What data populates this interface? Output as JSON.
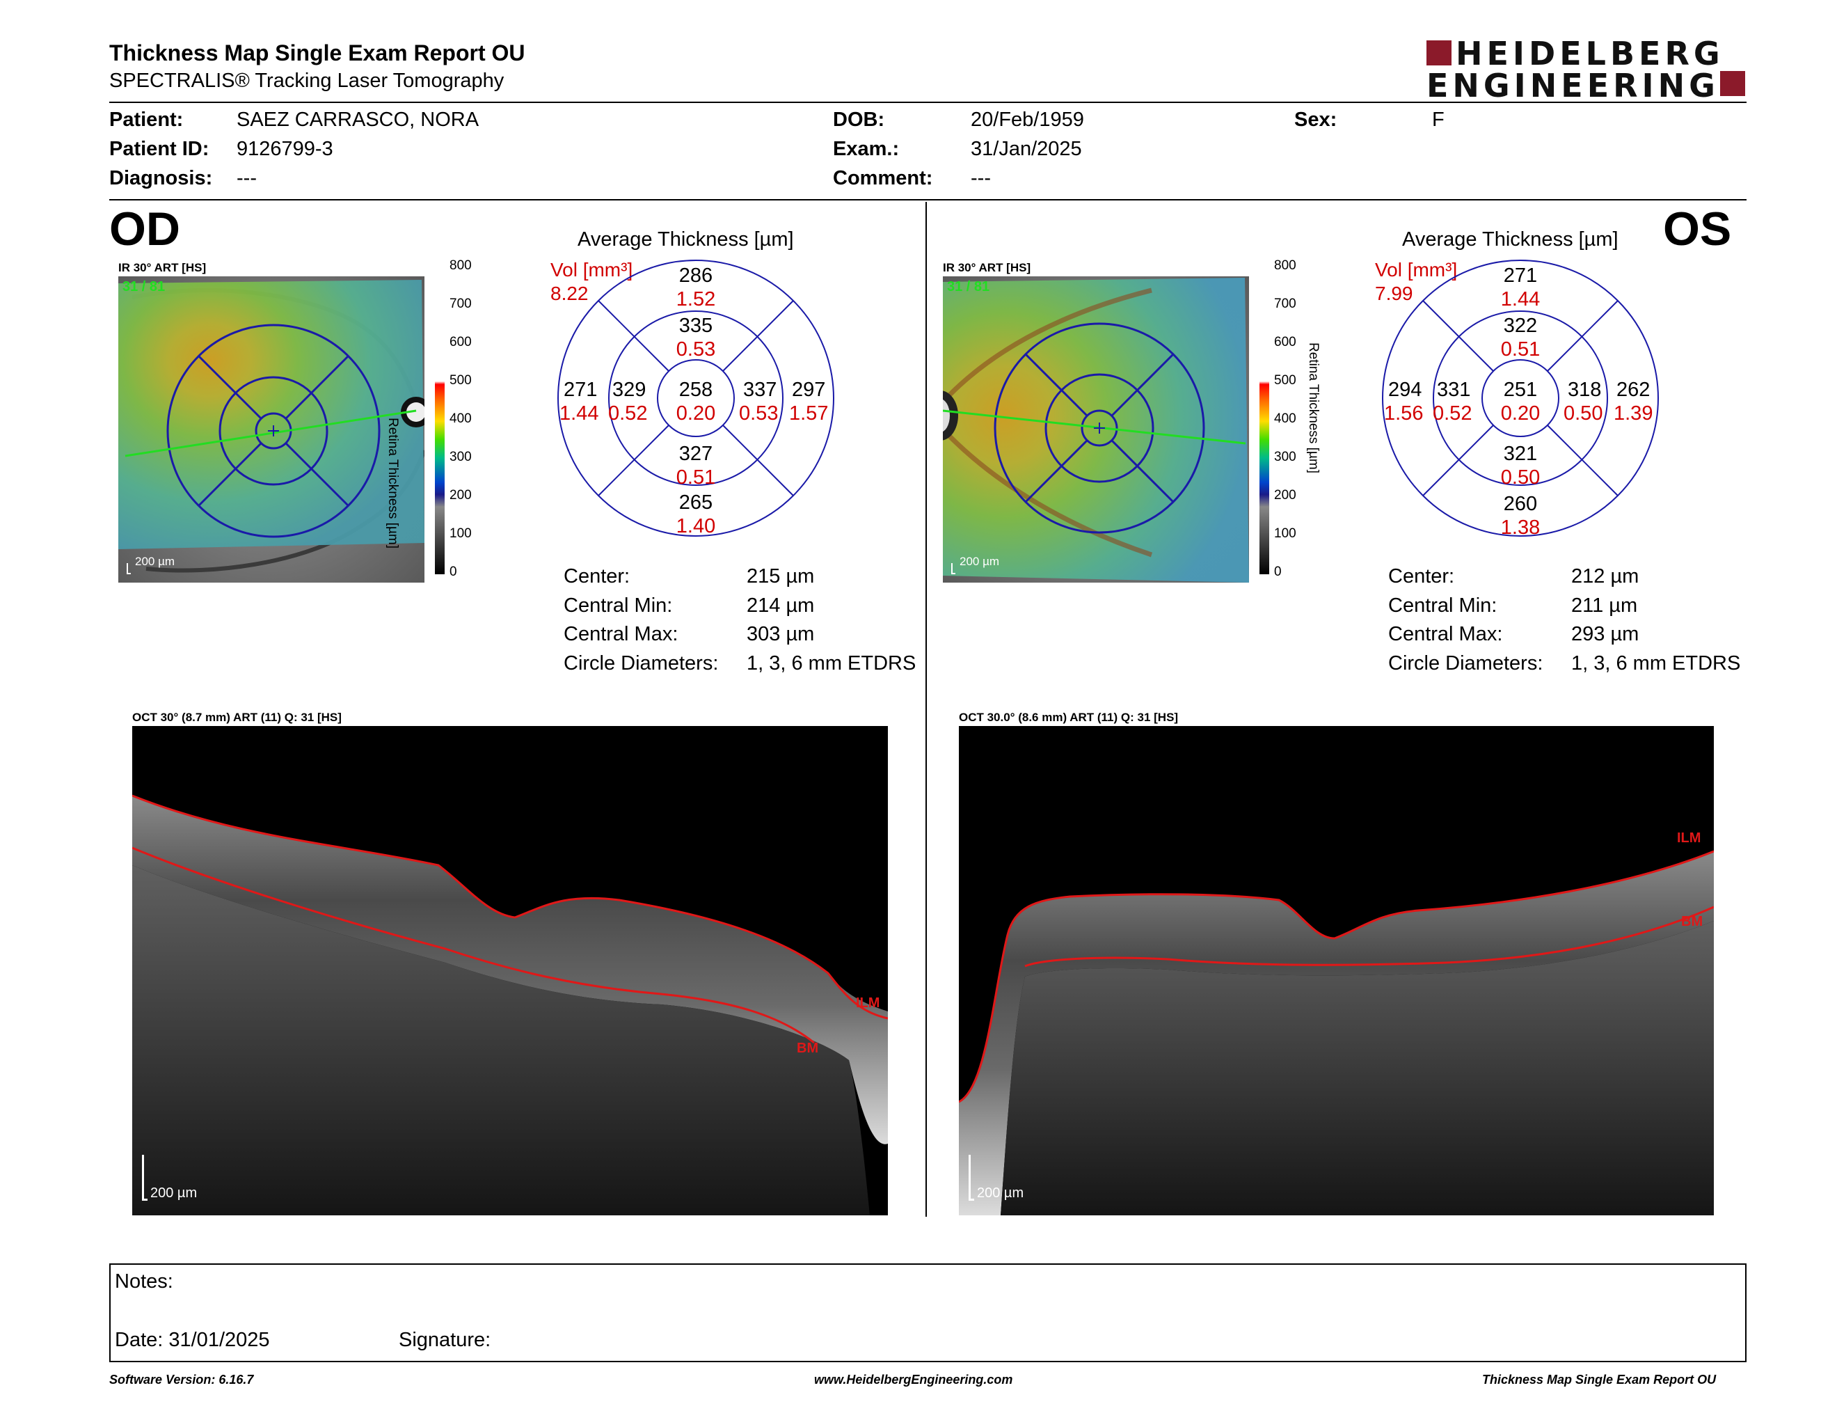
{
  "header": {
    "title": "Thickness Map Single Exam Report OU",
    "subtitle": "SPECTRALIS® Tracking Laser Tomography",
    "logo_line1": "HEIDELBERG",
    "logo_line2": "ENGINEERING",
    "logo_color": "#8b1a2a"
  },
  "patient": {
    "patient_label": "Patient:",
    "patient_value": "SAEZ CARRASCO, NORA",
    "id_label": "Patient ID:",
    "id_value": "9126799-3",
    "diagnosis_label": "Diagnosis:",
    "diagnosis_value": "---",
    "dob_label": "DOB:",
    "dob_value": "20/Feb/1959",
    "exam_label": "Exam.:",
    "exam_value": "31/Jan/2025",
    "comment_label": "Comment:",
    "comment_value": "---",
    "sex_label": "Sex:",
    "sex_value": "F"
  },
  "scale": {
    "ticks": [
      "800",
      "700",
      "600",
      "500",
      "400",
      "300",
      "200",
      "100",
      "0"
    ],
    "label": "Retina Thickness [µm]"
  },
  "od": {
    "eye": "OD",
    "map_caption": "IR 30° ART [HS]",
    "map_overlay": "31 / 81",
    "map_scalebar": "200 µm",
    "avg_title": "Average Thickness [µm]",
    "vol_label": "Vol [mm³]",
    "vol_value": "8.22",
    "sectors": {
      "center": {
        "thickness": "258",
        "volume": "0.20"
      },
      "inner_sup": {
        "thickness": "335",
        "volume": "0.53"
      },
      "inner_inf": {
        "thickness": "327",
        "volume": "0.51"
      },
      "inner_left": {
        "thickness": "329",
        "volume": "0.52"
      },
      "inner_right": {
        "thickness": "337",
        "volume": "0.53"
      },
      "outer_sup": {
        "thickness": "286",
        "volume": "1.52"
      },
      "outer_inf": {
        "thickness": "265",
        "volume": "1.40"
      },
      "outer_left": {
        "thickness": "271",
        "volume": "1.44"
      },
      "outer_right": {
        "thickness": "297",
        "volume": "1.57"
      }
    },
    "stats": [
      {
        "label": "Center:",
        "value": "215 µm"
      },
      {
        "label": "Central Min:",
        "value": "214 µm"
      },
      {
        "label": "Central Max:",
        "value": "303 µm"
      },
      {
        "label": "Circle Diameters:",
        "value": "1, 3, 6 mm ETDRS"
      }
    ],
    "oct_caption": "OCT 30° (8.7 mm) ART (11) Q: 31 [HS]",
    "oct_scalebar": "200 µm",
    "ilm": "ILM",
    "bm": "BM"
  },
  "os": {
    "eye": "OS",
    "map_caption": "IR 30° ART [HS]",
    "map_overlay": "31 / 81",
    "map_scalebar": "200 µm",
    "avg_title": "Average Thickness [µm]",
    "vol_label": "Vol [mm³]",
    "vol_value": "7.99",
    "sectors": {
      "center": {
        "thickness": "251",
        "volume": "0.20"
      },
      "inner_sup": {
        "thickness": "322",
        "volume": "0.51"
      },
      "inner_inf": {
        "thickness": "321",
        "volume": "0.50"
      },
      "inner_left": {
        "thickness": "331",
        "volume": "0.52"
      },
      "inner_right": {
        "thickness": "318",
        "volume": "0.50"
      },
      "outer_sup": {
        "thickness": "271",
        "volume": "1.44"
      },
      "outer_inf": {
        "thickness": "260",
        "volume": "1.38"
      },
      "outer_left": {
        "thickness": "294",
        "volume": "1.56"
      },
      "outer_right": {
        "thickness": "262",
        "volume": "1.39"
      }
    },
    "stats": [
      {
        "label": "Center:",
        "value": "212 µm"
      },
      {
        "label": "Central Min:",
        "value": "211 µm"
      },
      {
        "label": "Central Max:",
        "value": "293 µm"
      },
      {
        "label": "Circle Diameters:",
        "value": "1, 3, 6 mm ETDRS"
      }
    ],
    "oct_caption": "OCT 30.0° (8.6 mm) ART (11) Q: 31 [HS]",
    "oct_scalebar": "200 µm",
    "ilm": "ILM",
    "bm": "BM"
  },
  "notes": {
    "notes_label": "Notes:",
    "date_label": "Date: 31/01/2025",
    "signature_label": "Signature:"
  },
  "footer": {
    "software": "Software Version: 6.16.7",
    "website": "www.HeidelbergEngineering.com",
    "report_name": "Thickness Map Single Exam Report OU"
  },
  "colors": {
    "volume_red": "#d10000",
    "grid_blue": "#1a1aa8",
    "scan_green": "#22dd22",
    "segmentation_red": "#e01818"
  }
}
